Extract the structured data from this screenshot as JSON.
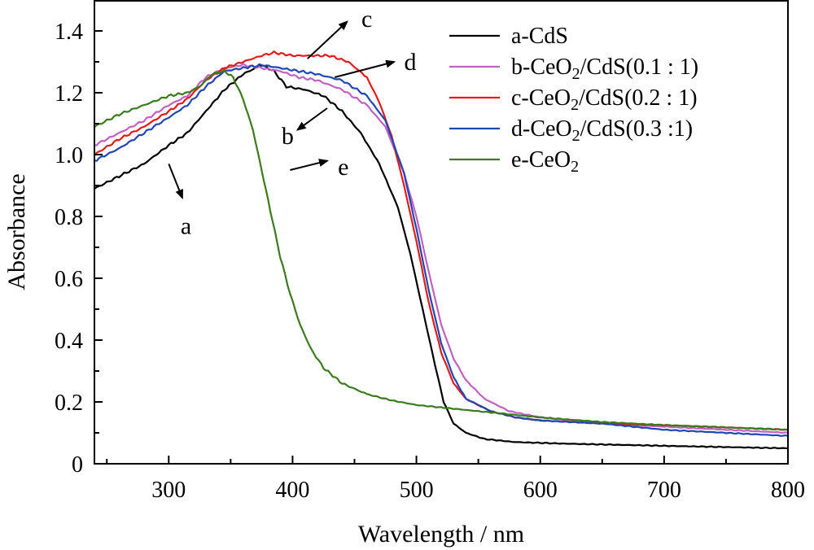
{
  "chart_data": {
    "type": "line",
    "xlabel": "Wavelength / nm",
    "ylabel": "Absorbance",
    "xlim": [
      240,
      800
    ],
    "ylim": [
      0,
      1.5
    ],
    "x_ticks": [
      300,
      400,
      500,
      600,
      700,
      800
    ],
    "y_ticks": [
      0,
      0.2,
      0.4,
      0.6,
      0.8,
      1.0,
      1.2,
      1.4
    ],
    "grid": false,
    "legend_position": "top-right",
    "series": [
      {
        "name": "a-CdS",
        "legend_parts": [
          {
            "t": "a-CdS"
          }
        ],
        "color": "#000000",
        "points": [
          [
            240,
            0.89
          ],
          [
            260,
            0.93
          ],
          [
            280,
            0.97
          ],
          [
            300,
            1.03
          ],
          [
            315,
            1.07
          ],
          [
            330,
            1.14
          ],
          [
            345,
            1.21
          ],
          [
            360,
            1.26
          ],
          [
            375,
            1.29
          ],
          [
            385,
            1.27
          ],
          [
            395,
            1.22
          ],
          [
            410,
            1.21
          ],
          [
            425,
            1.19
          ],
          [
            440,
            1.14
          ],
          [
            455,
            1.07
          ],
          [
            470,
            0.97
          ],
          [
            485,
            0.83
          ],
          [
            495,
            0.68
          ],
          [
            505,
            0.5
          ],
          [
            515,
            0.32
          ],
          [
            522,
            0.2
          ],
          [
            530,
            0.13
          ],
          [
            540,
            0.1
          ],
          [
            555,
            0.08
          ],
          [
            580,
            0.07
          ],
          [
            620,
            0.065
          ],
          [
            700,
            0.058
          ],
          [
            800,
            0.05
          ]
        ]
      },
      {
        "name": "b-CeO2/CdS(0.1:1)",
        "legend_parts": [
          {
            "t": "b-CeO"
          },
          {
            "t": "2",
            "sub": true
          },
          {
            "t": "/CdS(0.1 : 1)"
          }
        ],
        "color": "#c061c0",
        "points": [
          [
            240,
            1.03
          ],
          [
            260,
            1.07
          ],
          [
            280,
            1.11
          ],
          [
            300,
            1.16
          ],
          [
            315,
            1.19
          ],
          [
            330,
            1.25
          ],
          [
            345,
            1.28
          ],
          [
            360,
            1.29
          ],
          [
            375,
            1.28
          ],
          [
            390,
            1.27
          ],
          [
            405,
            1.25
          ],
          [
            420,
            1.24
          ],
          [
            440,
            1.21
          ],
          [
            460,
            1.16
          ],
          [
            475,
            1.09
          ],
          [
            490,
            0.94
          ],
          [
            500,
            0.8
          ],
          [
            510,
            0.62
          ],
          [
            520,
            0.45
          ],
          [
            530,
            0.34
          ],
          [
            540,
            0.27
          ],
          [
            555,
            0.21
          ],
          [
            575,
            0.17
          ],
          [
            600,
            0.15
          ],
          [
            650,
            0.13
          ],
          [
            700,
            0.12
          ],
          [
            750,
            0.11
          ],
          [
            800,
            0.1
          ]
        ]
      },
      {
        "name": "c-CeO2/CdS(0.2:1)",
        "legend_parts": [
          {
            "t": "c-CeO"
          },
          {
            "t": "2",
            "sub": true
          },
          {
            "t": "/CdS(0.2 : 1)"
          }
        ],
        "color": "#e31b1b",
        "points": [
          [
            240,
            1.0
          ],
          [
            260,
            1.05
          ],
          [
            280,
            1.09
          ],
          [
            300,
            1.14
          ],
          [
            315,
            1.18
          ],
          [
            330,
            1.24
          ],
          [
            345,
            1.28
          ],
          [
            360,
            1.3
          ],
          [
            375,
            1.32
          ],
          [
            385,
            1.33
          ],
          [
            400,
            1.32
          ],
          [
            415,
            1.32
          ],
          [
            430,
            1.32
          ],
          [
            445,
            1.3
          ],
          [
            460,
            1.25
          ],
          [
            470,
            1.17
          ],
          [
            480,
            1.06
          ],
          [
            490,
            0.9
          ],
          [
            500,
            0.72
          ],
          [
            510,
            0.52
          ],
          [
            520,
            0.36
          ],
          [
            530,
            0.26
          ],
          [
            540,
            0.21
          ],
          [
            560,
            0.17
          ],
          [
            580,
            0.15
          ],
          [
            600,
            0.14
          ],
          [
            650,
            0.13
          ],
          [
            700,
            0.125
          ],
          [
            800,
            0.11
          ]
        ]
      },
      {
        "name": "d-CeO2/CdS(0.3:1)",
        "legend_parts": [
          {
            "t": "d-CeO"
          },
          {
            "t": "2",
            "sub": true
          },
          {
            "t": "/CdS(0.3 :1)"
          }
        ],
        "color": "#1f47b4",
        "points": [
          [
            240,
            0.98
          ],
          [
            260,
            1.02
          ],
          [
            280,
            1.07
          ],
          [
            300,
            1.12
          ],
          [
            315,
            1.16
          ],
          [
            330,
            1.22
          ],
          [
            345,
            1.27
          ],
          [
            360,
            1.28
          ],
          [
            375,
            1.29
          ],
          [
            390,
            1.28
          ],
          [
            405,
            1.27
          ],
          [
            420,
            1.26
          ],
          [
            440,
            1.24
          ],
          [
            460,
            1.19
          ],
          [
            475,
            1.11
          ],
          [
            490,
            0.94
          ],
          [
            500,
            0.76
          ],
          [
            510,
            0.56
          ],
          [
            520,
            0.39
          ],
          [
            530,
            0.28
          ],
          [
            540,
            0.21
          ],
          [
            560,
            0.17
          ],
          [
            580,
            0.15
          ],
          [
            600,
            0.14
          ],
          [
            650,
            0.13
          ],
          [
            700,
            0.11
          ],
          [
            750,
            0.1
          ],
          [
            800,
            0.09
          ]
        ]
      },
      {
        "name": "e-CeO2",
        "legend_parts": [
          {
            "t": "e-CeO"
          },
          {
            "t": "2",
            "sub": true
          }
        ],
        "color": "#3b7a1e",
        "points": [
          [
            240,
            1.09
          ],
          [
            260,
            1.13
          ],
          [
            280,
            1.16
          ],
          [
            300,
            1.19
          ],
          [
            315,
            1.2
          ],
          [
            325,
            1.22
          ],
          [
            335,
            1.26
          ],
          [
            345,
            1.27
          ],
          [
            352,
            1.25
          ],
          [
            360,
            1.18
          ],
          [
            368,
            1.08
          ],
          [
            375,
            0.95
          ],
          [
            382,
            0.82
          ],
          [
            390,
            0.67
          ],
          [
            398,
            0.55
          ],
          [
            406,
            0.45
          ],
          [
            415,
            0.37
          ],
          [
            425,
            0.31
          ],
          [
            440,
            0.26
          ],
          [
            460,
            0.225
          ],
          [
            480,
            0.205
          ],
          [
            500,
            0.19
          ],
          [
            550,
            0.17
          ],
          [
            600,
            0.15
          ],
          [
            650,
            0.135
          ],
          [
            700,
            0.125
          ],
          [
            800,
            0.11
          ]
        ]
      }
    ],
    "annotations": [
      {
        "label": "a",
        "from": [
          300,
          0.97
        ],
        "to": [
          311,
          0.86
        ],
        "label_at": [
          314,
          0.77
        ]
      },
      {
        "label": "b",
        "from": [
          428,
          1.15
        ],
        "to": [
          404,
          1.08
        ],
        "label_at": [
          396,
          1.06
        ]
      },
      {
        "label": "c",
        "from": [
          412,
          1.31
        ],
        "to": [
          444,
          1.43
        ],
        "label_at": [
          460,
          1.44
        ]
      },
      {
        "label": "d",
        "from": [
          434,
          1.25
        ],
        "to": [
          482,
          1.3
        ],
        "label_at": [
          495,
          1.3
        ]
      },
      {
        "label": "e",
        "from": [
          398,
          0.95
        ],
        "to": [
          428,
          0.98
        ],
        "label_at": [
          441,
          0.96
        ]
      }
    ]
  }
}
